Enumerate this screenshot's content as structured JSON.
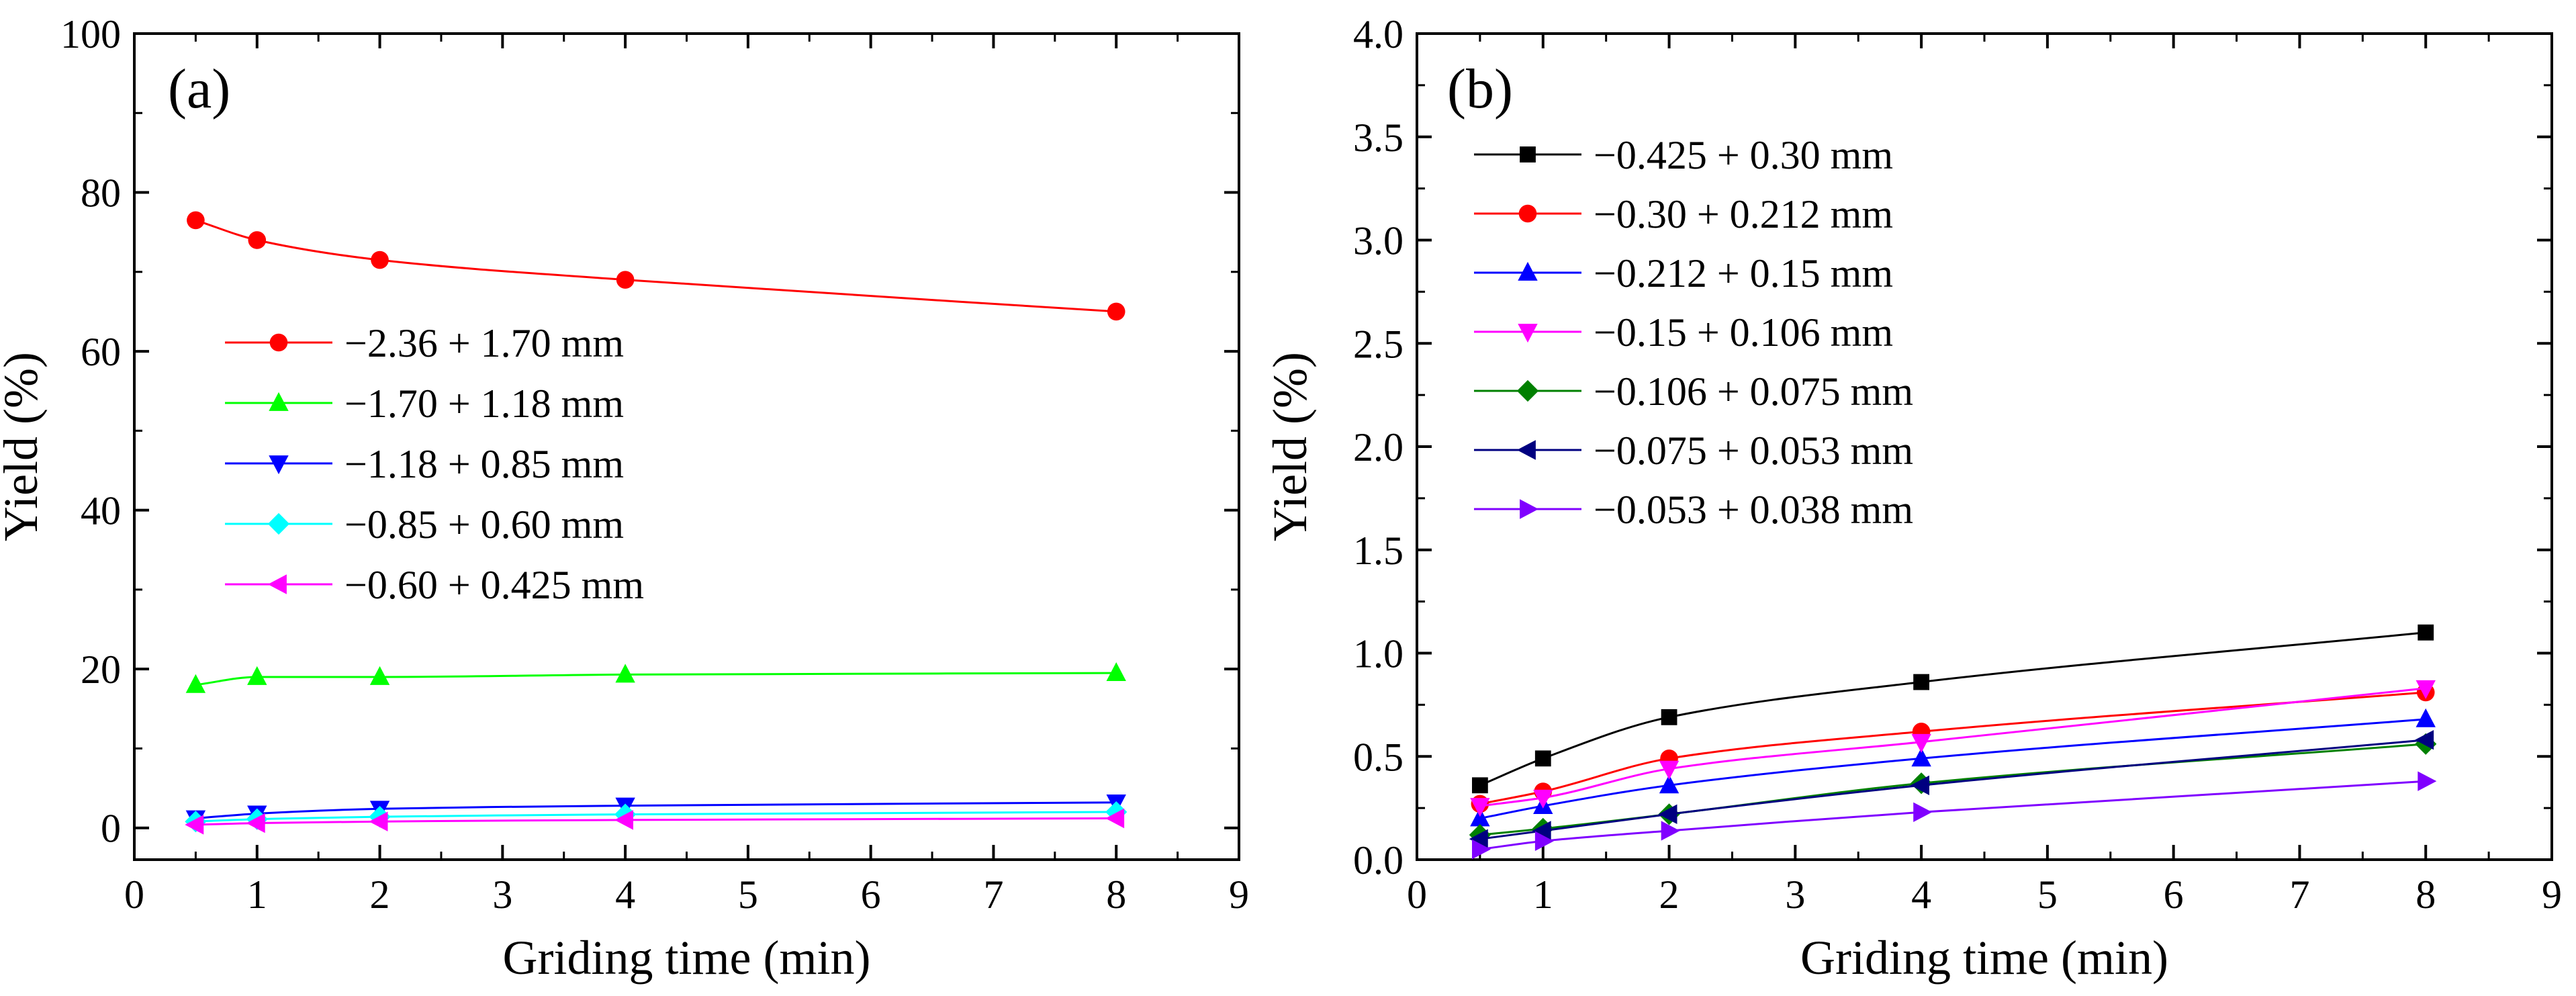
{
  "chart_data": [
    {
      "type": "line",
      "panel_label": "(a)",
      "xlabel": "Griding time (min)",
      "ylabel": "Yield (%)",
      "xlim": [
        0,
        9
      ],
      "ylim": [
        -4,
        100
      ],
      "xticks": [
        "0",
        "1",
        "2",
        "3",
        "4",
        "5",
        "6",
        "7",
        "8",
        "9"
      ],
      "yticks": [
        "0",
        "20",
        "40",
        "60",
        "80",
        "100"
      ],
      "legend_position": "middle-left",
      "x": [
        0.5,
        1,
        2,
        4,
        8
      ],
      "series": [
        {
          "name": "−2.36 + 1.70 mm",
          "color": "#ff0000",
          "marker": "circle",
          "values": [
            76.5,
            74,
            71.5,
            69,
            65
          ]
        },
        {
          "name": "−1.70 + 1.18 mm",
          "color": "#00ff00",
          "marker": "triangle-up",
          "values": [
            18,
            19,
            19,
            19.3,
            19.5
          ]
        },
        {
          "name": "−1.18 + 0.85 mm",
          "color": "#0000ff",
          "marker": "triangle-down",
          "values": [
            1.2,
            1.8,
            2.4,
            2.8,
            3.2
          ]
        },
        {
          "name": "−0.85 + 0.60 mm",
          "color": "#00ffff",
          "marker": "diamond",
          "values": [
            0.8,
            1.1,
            1.4,
            1.7,
            2.0
          ]
        },
        {
          "name": "−0.60 + 0.425 mm",
          "color": "#ff00ff",
          "marker": "triangle-left",
          "values": [
            0.4,
            0.6,
            0.8,
            1.0,
            1.2
          ]
        }
      ]
    },
    {
      "type": "line",
      "panel_label": "(b)",
      "xlabel": "Griding time (min)",
      "ylabel": "Yield (%)",
      "xlim": [
        0,
        9
      ],
      "ylim": [
        0,
        4.0
      ],
      "xticks": [
        "0",
        "1",
        "2",
        "3",
        "4",
        "5",
        "6",
        "7",
        "8",
        "9"
      ],
      "yticks": [
        "0.0",
        "0.5",
        "1.0",
        "1.5",
        "2.0",
        "2.5",
        "3.0",
        "3.5",
        "4.0"
      ],
      "legend_position": "top-left",
      "x": [
        0.5,
        1,
        2,
        4,
        8
      ],
      "series": [
        {
          "name": "−0.425 + 0.30 mm",
          "color": "#000000",
          "marker": "square",
          "values": [
            0.36,
            0.49,
            0.69,
            0.86,
            1.1
          ]
        },
        {
          "name": "−0.30 + 0.212 mm",
          "color": "#ff0000",
          "marker": "circle",
          "values": [
            0.27,
            0.33,
            0.49,
            0.62,
            0.81
          ]
        },
        {
          "name": "−0.212 + 0.15 mm",
          "color": "#0000ff",
          "marker": "triangle-up",
          "values": [
            0.2,
            0.26,
            0.36,
            0.49,
            0.68
          ]
        },
        {
          "name": "−0.15 + 0.106 mm",
          "color": "#ff00ff",
          "marker": "triangle-down",
          "values": [
            0.26,
            0.3,
            0.44,
            0.57,
            0.83
          ]
        },
        {
          "name": "−0.106 + 0.075 mm",
          "color": "#008000",
          "marker": "diamond",
          "values": [
            0.12,
            0.15,
            0.22,
            0.37,
            0.56
          ]
        },
        {
          "name": "−0.075 + 0.053 mm",
          "color": "#000080",
          "marker": "triangle-left",
          "values": [
            0.1,
            0.14,
            0.22,
            0.36,
            0.58
          ]
        },
        {
          "name": "−0.053 + 0.038 mm",
          "color": "#8000ff",
          "marker": "triangle-right",
          "values": [
            0.05,
            0.09,
            0.14,
            0.23,
            0.38
          ]
        }
      ]
    }
  ]
}
